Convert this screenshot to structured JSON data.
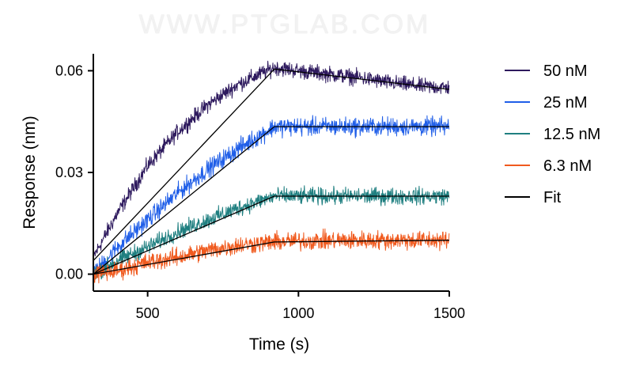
{
  "watermark": "WWW.PTGLAB.COM",
  "chart_data": {
    "type": "line",
    "xlabel": "Time (s)",
    "ylabel": "Response  (nm)",
    "xlim": [
      320,
      1500
    ],
    "ylim": [
      -0.005,
      0.065
    ],
    "xticks": [
      {
        "value": 500,
        "label": "500"
      },
      {
        "value": 1000,
        "label": "1000"
      },
      {
        "value": 1500,
        "label": "1500"
      }
    ],
    "yticks": [
      {
        "value": 0.0,
        "label": "0.00"
      },
      {
        "value": 0.03,
        "label": "0.03"
      },
      {
        "value": 0.06,
        "label": "0.06"
      }
    ],
    "grid": false,
    "legend_position": "right",
    "series": [
      {
        "name": "50 nM",
        "color": "#2e1a5e",
        "noise": 0.0016,
        "data": [
          [
            320,
            0.005
          ],
          [
            400,
            0.018
          ],
          [
            500,
            0.032
          ],
          [
            600,
            0.042
          ],
          [
            700,
            0.05
          ],
          [
            800,
            0.056
          ],
          [
            920,
            0.061
          ],
          [
            1000,
            0.06
          ],
          [
            1100,
            0.059
          ],
          [
            1200,
            0.058
          ],
          [
            1300,
            0.0565
          ],
          [
            1400,
            0.0555
          ],
          [
            1500,
            0.055
          ]
        ]
      },
      {
        "name": "25 nM",
        "color": "#1f5ee8",
        "noise": 0.0019,
        "data": [
          [
            320,
            0.0
          ],
          [
            400,
            0.008
          ],
          [
            500,
            0.016
          ],
          [
            600,
            0.024
          ],
          [
            700,
            0.031
          ],
          [
            800,
            0.037
          ],
          [
            920,
            0.0435
          ],
          [
            1000,
            0.0435
          ],
          [
            1100,
            0.0435
          ],
          [
            1200,
            0.0435
          ],
          [
            1300,
            0.0435
          ],
          [
            1400,
            0.0435
          ],
          [
            1500,
            0.0435
          ]
        ]
      },
      {
        "name": "12.5 nM",
        "color": "#1f7f80",
        "noise": 0.0017,
        "data": [
          [
            320,
            0.0
          ],
          [
            400,
            0.004
          ],
          [
            500,
            0.008
          ],
          [
            600,
            0.0125
          ],
          [
            700,
            0.016
          ],
          [
            800,
            0.0195
          ],
          [
            920,
            0.023
          ],
          [
            1000,
            0.023
          ],
          [
            1100,
            0.023
          ],
          [
            1200,
            0.023
          ],
          [
            1300,
            0.023
          ],
          [
            1400,
            0.023
          ],
          [
            1500,
            0.023
          ]
        ]
      },
      {
        "name": "6.3 nM",
        "color": "#f05a1e",
        "noise": 0.0019,
        "data": [
          [
            320,
            0.0
          ],
          [
            400,
            0.001
          ],
          [
            500,
            0.0035
          ],
          [
            600,
            0.005
          ],
          [
            700,
            0.007
          ],
          [
            800,
            0.0085
          ],
          [
            920,
            0.0095
          ],
          [
            1000,
            0.0098
          ],
          [
            1100,
            0.0099
          ],
          [
            1200,
            0.01
          ],
          [
            1300,
            0.01
          ],
          [
            1400,
            0.01
          ],
          [
            1500,
            0.01
          ]
        ]
      }
    ],
    "fit": {
      "name": "Fit",
      "color": "#000000",
      "lines": [
        [
          [
            320,
            0.004
          ],
          [
            920,
            0.0605
          ],
          [
            1500,
            0.0545
          ]
        ],
        [
          [
            320,
            0.0
          ],
          [
            920,
            0.0435
          ],
          [
            1500,
            0.0435
          ]
        ],
        [
          [
            320,
            0.0
          ],
          [
            920,
            0.023
          ],
          [
            1500,
            0.023
          ]
        ],
        [
          [
            320,
            0.0
          ],
          [
            920,
            0.0095
          ],
          [
            1500,
            0.01
          ]
        ]
      ]
    }
  }
}
